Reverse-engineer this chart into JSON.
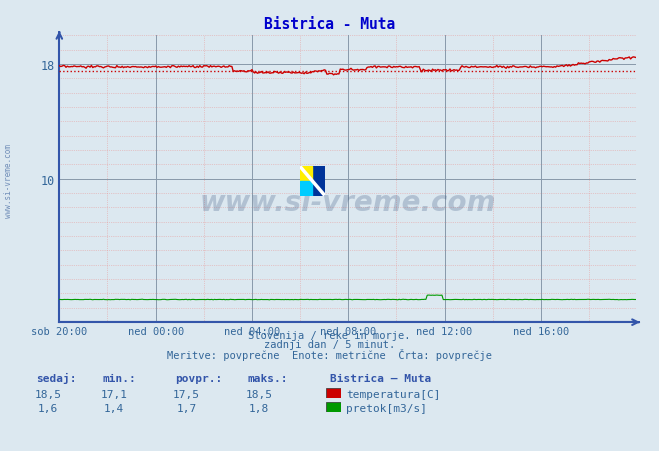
{
  "title": "Bistrica - Muta",
  "title_color": "#0000cc",
  "bg_color": "#dce8f0",
  "plot_bg_color": "#dce8f0",
  "grid_major_color": "#8899aa",
  "grid_minor_color": "#e8a0a0",
  "x_tick_labels": [
    "sob 20:00",
    "ned 00:00",
    "ned 04:00",
    "ned 08:00",
    "ned 12:00",
    "ned 16:00"
  ],
  "x_tick_positions": [
    0,
    72,
    144,
    216,
    288,
    360
  ],
  "n_points": 432,
  "temp_avg": 17.5,
  "y_min": 0,
  "y_max": 20,
  "y_ticks": [
    10,
    18
  ],
  "temp_color": "#cc0000",
  "flow_color": "#009900",
  "avg_line_color": "#cc0000",
  "axis_color": "#3355aa",
  "tick_label_color": "#336699",
  "watermark_text": "www.si-vreme.com",
  "watermark_color": "#1a3a6a",
  "side_label": "www.si-vreme.com",
  "footer_line1": "Slovenija / reke in morje.",
  "footer_line2": "zadnji dan / 5 minut.",
  "footer_line3": "Meritve: povprečne  Enote: metrične  Črta: povprečje",
  "legend_title": "Bistrica – Muta",
  "legend_items": [
    "temperatura[C]",
    "pretok[m3/s]"
  ],
  "legend_colors": [
    "#cc0000",
    "#009900"
  ],
  "table_headers": [
    "sedaj:",
    "min.:",
    "povpr.:",
    "maks.:"
  ],
  "table_temp": [
    "18,5",
    "17,1",
    "17,5",
    "18,5"
  ],
  "table_flow": [
    "1,6",
    "1,4",
    "1,7",
    "1,8"
  ]
}
